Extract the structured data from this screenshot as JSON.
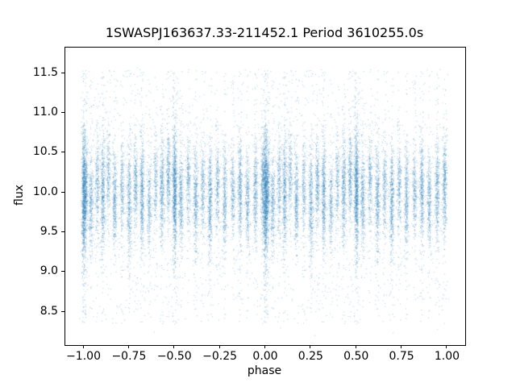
{
  "figure": {
    "kind": "matplotlib-style scatter figure",
    "background": "#ffffff"
  },
  "chart_data": {
    "type": "scatter",
    "title": "1SWASPJ163637.33-211452.1 Period 3610255.0s",
    "xlabel": "phase",
    "ylabel": "flux",
    "xlim": [
      -1.1,
      1.1
    ],
    "ylim": [
      8.08,
      11.82
    ],
    "xtick_values": [
      -1.0,
      -0.75,
      -0.5,
      -0.25,
      0.0,
      0.25,
      0.5,
      0.75,
      1.0
    ],
    "xtick_labels": [
      "−1.00",
      "−0.75",
      "−0.50",
      "−0.25",
      "0.00",
      "0.25",
      "0.50",
      "0.75",
      "1.00"
    ],
    "ytick_values": [
      8.5,
      9.0,
      9.5,
      10.0,
      10.5,
      11.0,
      11.5
    ],
    "ytick_labels": [
      "8.5",
      "9.0",
      "9.5",
      "10.0",
      "10.5",
      "11.0",
      "11.5"
    ],
    "grid": false,
    "legend": null,
    "marker_color": "#1f77b4",
    "marker_alpha": 0.45,
    "marker_size_px": 1,
    "seed": 42,
    "sampling_note": "Dense folded light curve (~25k tiny points) approximated by a generative cluster model; each observation column is plotted at phase p and p-1.",
    "phase_jitter_sigma": 0.006,
    "tail_fraction": 0.13,
    "tail_range": [
      8.35,
      11.55
    ],
    "cluster_fields": [
      "phase",
      "count",
      "flux_center",
      "flux_sigma"
    ],
    "clusters": [
      [
        0.0,
        1100,
        9.95,
        0.4
      ],
      [
        0.012,
        400,
        10.05,
        0.3
      ],
      [
        0.04,
        350,
        9.85,
        0.28
      ],
      [
        0.075,
        300,
        10.1,
        0.32
      ],
      [
        0.105,
        500,
        10.0,
        0.35
      ],
      [
        0.135,
        250,
        10.2,
        0.28
      ],
      [
        0.17,
        400,
        9.9,
        0.3
      ],
      [
        0.21,
        300,
        10.05,
        0.33
      ],
      [
        0.25,
        450,
        9.9,
        0.38
      ],
      [
        0.285,
        350,
        10.1,
        0.3
      ],
      [
        0.32,
        550,
        10.0,
        0.35
      ],
      [
        0.36,
        300,
        9.85,
        0.28
      ],
      [
        0.395,
        250,
        10.15,
        0.3
      ],
      [
        0.43,
        450,
        10.0,
        0.34
      ],
      [
        0.465,
        350,
        10.2,
        0.28
      ],
      [
        0.5,
        1000,
        10.0,
        0.4
      ],
      [
        0.535,
        400,
        9.9,
        0.3
      ],
      [
        0.575,
        300,
        10.1,
        0.3
      ],
      [
        0.615,
        450,
        9.95,
        0.34
      ],
      [
        0.655,
        300,
        10.05,
        0.28
      ],
      [
        0.695,
        500,
        9.9,
        0.34
      ],
      [
        0.735,
        300,
        10.1,
        0.3
      ],
      [
        0.775,
        400,
        9.95,
        0.33
      ],
      [
        0.82,
        300,
        10.0,
        0.28
      ],
      [
        0.86,
        450,
        10.05,
        0.34
      ],
      [
        0.9,
        350,
        9.9,
        0.3
      ],
      [
        0.945,
        400,
        10.0,
        0.33
      ],
      [
        0.985,
        450,
        10.1,
        0.32
      ]
    ],
    "background_scatter": {
      "n": 1200,
      "flux_center": 10.0,
      "flux_sigma": 0.55
    },
    "outliers": {
      "n": 50,
      "flux_range": [
        8.2,
        11.68
      ]
    }
  }
}
